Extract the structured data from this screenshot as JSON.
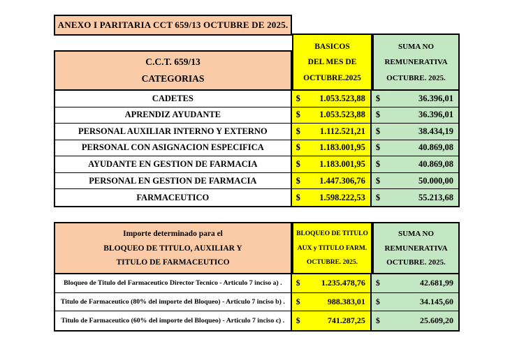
{
  "colors": {
    "peach": "#FBCBA7",
    "yellow": "#FFFF00",
    "green": "#C3E6C3",
    "border": "#000000"
  },
  "title": "ANEXO I PARITARIA CCT 659/13 OCTUBRE DE 2025.",
  "table1": {
    "category_header": {
      "line1": "C.C.T.  659/13",
      "line2": "CATEGORIAS"
    },
    "basicos_header": {
      "line1": "BASICOS",
      "line2": "DEL MES DE",
      "line3": "OCTUBRE.2025"
    },
    "suma_header": {
      "line1": "SUMA NO",
      "line2": "REMUNERATIVA",
      "line3": "OCTUBRE. 2025."
    },
    "currency": "$",
    "rows": [
      {
        "category": "CADETES",
        "basico": "1.053.523,88",
        "suma": "36.396,01"
      },
      {
        "category": "APRENDIZ AYUDANTE",
        "basico": "1.053.523,88",
        "suma": "36.396,01"
      },
      {
        "category": "PERSONAL AUXILIAR INTERNO Y EXTERNO",
        "basico": "1.112.521,21",
        "suma": "38.434,19"
      },
      {
        "category": "PERSONAL CON ASIGNACION ESPECIFICA",
        "basico": "1.183.001,95",
        "suma": "40.869,08"
      },
      {
        "category": "AYUDANTE EN GESTION  DE FARMACIA",
        "basico": "1.183.001,95",
        "suma": "40.869,08"
      },
      {
        "category": "PERSONAL EN GESTION DE FARMACIA",
        "basico": "1.447.306,76",
        "suma": "50.000,00"
      },
      {
        "category": "FARMACEUTICO",
        "basico": "1.598.222,53",
        "suma": "55.213,68"
      }
    ]
  },
  "table2": {
    "importe_header": {
      "line1": "Importe determinado para el",
      "line2": "BLOQUEO  DE TITULO, AUXILIAR Y",
      "line3": "TITULO DE FARMACEUTICO"
    },
    "bloqueo_header": {
      "line1": "BLOQUEO DE TITULO",
      "line2": "AUX y TITULO FARM.",
      "line3": "OCTUBRE. 2025."
    },
    "suma_header": {
      "line1": "SUMA NO",
      "line2": "REMUNERATIVA",
      "line3": "OCTUBRE. 2025."
    },
    "currency": "$",
    "rows": [
      {
        "concept": "Bloqueo de Titulo del Farmaceutico Director Tecnico - Articulo 7 inciso a) .",
        "importe": "1.235.478,76",
        "suma": "42.681,99"
      },
      {
        "concept": "Titulo de Farmaceutico (80% del importe del Bloqueo) - Articulo 7 inciso b) .",
        "importe": "988.383,01",
        "suma": "34.145,60"
      },
      {
        "concept": "Titulo de Farmaceutico (60% del importe del Bloqueo) - Articulo 7 inciso c) .",
        "importe": "741.287,25",
        "suma": "25.609,20"
      }
    ]
  }
}
